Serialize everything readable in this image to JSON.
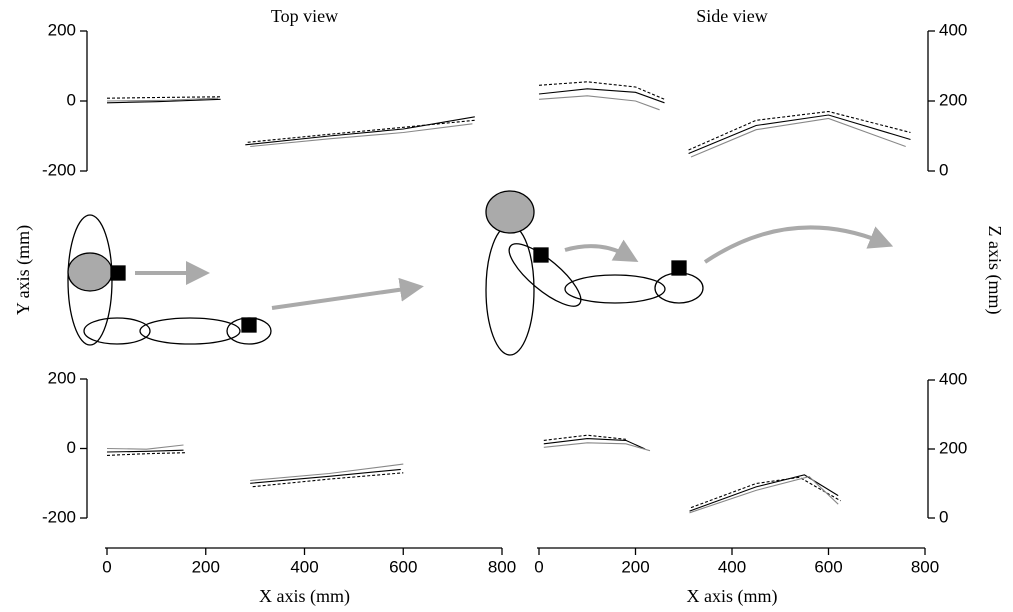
{
  "chart_data": [
    {
      "type": "line",
      "title": "Top view",
      "ylabel": "Y axis (mm)",
      "xlim": [
        0,
        800
      ],
      "ylim": [
        -200,
        200
      ],
      "yticks": [
        -200,
        0,
        200
      ],
      "series": [
        {
          "color": "#000000",
          "dashed": false,
          "x": [
            0,
            100,
            230
          ],
          "values": [
            -5,
            -2,
            5
          ]
        },
        {
          "color": "#000000",
          "dashed": true,
          "x": [
            0,
            100,
            230
          ],
          "values": [
            8,
            10,
            12
          ]
        },
        {
          "color": "#888888",
          "dashed": false,
          "x": [
            0,
            120,
            225
          ],
          "values": [
            0,
            2,
            8
          ]
        },
        {
          "color": "#000000",
          "dashed": false,
          "x": [
            280,
            450,
            600,
            745
          ],
          "values": [
            -125,
            -100,
            -80,
            -45
          ]
        },
        {
          "color": "#000000",
          "dashed": true,
          "x": [
            285,
            450,
            600,
            745
          ],
          "values": [
            -118,
            -95,
            -75,
            -55
          ]
        },
        {
          "color": "#888888",
          "dashed": false,
          "x": [
            290,
            450,
            600,
            740
          ],
          "values": [
            -130,
            -108,
            -90,
            -65
          ]
        }
      ]
    },
    {
      "type": "line",
      "title": "Side view",
      "ylabel": "Z axis (mm)",
      "xlim": [
        0,
        800
      ],
      "ylim": [
        0,
        400
      ],
      "yticks": [
        0,
        200,
        400
      ],
      "series": [
        {
          "color": "#000000",
          "dashed": false,
          "x": [
            0,
            100,
            200,
            260
          ],
          "values": [
            220,
            235,
            225,
            195
          ]
        },
        {
          "color": "#000000",
          "dashed": true,
          "x": [
            0,
            100,
            200,
            260
          ],
          "values": [
            245,
            255,
            240,
            205
          ]
        },
        {
          "color": "#888888",
          "dashed": false,
          "x": [
            0,
            100,
            200,
            250
          ],
          "values": [
            205,
            215,
            200,
            175
          ]
        },
        {
          "color": "#000000",
          "dashed": false,
          "x": [
            310,
            450,
            600,
            770
          ],
          "values": [
            50,
            130,
            160,
            90
          ]
        },
        {
          "color": "#000000",
          "dashed": true,
          "x": [
            310,
            450,
            600,
            770
          ],
          "values": [
            60,
            145,
            170,
            110
          ]
        },
        {
          "color": "#888888",
          "dashed": false,
          "x": [
            315,
            450,
            600,
            760
          ],
          "values": [
            40,
            118,
            150,
            70
          ]
        }
      ]
    },
    {
      "type": "line",
      "xlabel": "X axis (mm)",
      "xlim": [
        0,
        800
      ],
      "xticks": [
        0,
        200,
        400,
        600,
        800
      ],
      "ylim": [
        -200,
        200
      ],
      "yticks": [
        -200,
        0,
        200
      ],
      "series": [
        {
          "color": "#000000",
          "dashed": false,
          "x": [
            0,
            80,
            155
          ],
          "values": [
            -10,
            -8,
            -5
          ]
        },
        {
          "color": "#000000",
          "dashed": true,
          "x": [
            0,
            80,
            160
          ],
          "values": [
            -20,
            -15,
            -12
          ]
        },
        {
          "color": "#888888",
          "dashed": false,
          "x": [
            0,
            80,
            155
          ],
          "values": [
            0,
            -2,
            10
          ]
        },
        {
          "color": "#000000",
          "dashed": false,
          "x": [
            290,
            450,
            595
          ],
          "values": [
            -100,
            -80,
            -60
          ]
        },
        {
          "color": "#000000",
          "dashed": true,
          "x": [
            295,
            450,
            600
          ],
          "values": [
            -110,
            -88,
            -70
          ]
        },
        {
          "color": "#888888",
          "dashed": false,
          "x": [
            290,
            450,
            600
          ],
          "values": [
            -92,
            -72,
            -45
          ]
        }
      ]
    },
    {
      "type": "line",
      "xlabel": "X axis (mm)",
      "xlim": [
        0,
        800
      ],
      "xticks": [
        0,
        200,
        400,
        600,
        800
      ],
      "ylim": [
        0,
        400
      ],
      "yticks": [
        0,
        200,
        400
      ],
      "series": [
        {
          "color": "#000000",
          "dashed": false,
          "x": [
            10,
            100,
            180,
            220
          ],
          "values": [
            215,
            230,
            225,
            200
          ]
        },
        {
          "color": "#000000",
          "dashed": true,
          "x": [
            10,
            100,
            180
          ],
          "values": [
            225,
            240,
            228
          ]
        },
        {
          "color": "#888888",
          "dashed": false,
          "x": [
            10,
            100,
            180,
            230
          ],
          "values": [
            205,
            218,
            215,
            195
          ]
        },
        {
          "color": "#000000",
          "dashed": false,
          "x": [
            312,
            450,
            550,
            620
          ],
          "values": [
            20,
            90,
            125,
            65
          ]
        },
        {
          "color": "#000000",
          "dashed": true,
          "x": [
            315,
            450,
            540,
            625
          ],
          "values": [
            30,
            100,
            118,
            50
          ]
        },
        {
          "color": "#888888",
          "dashed": false,
          "x": [
            312,
            450,
            560,
            620
          ],
          "values": [
            15,
            80,
            120,
            40
          ]
        }
      ]
    }
  ]
}
